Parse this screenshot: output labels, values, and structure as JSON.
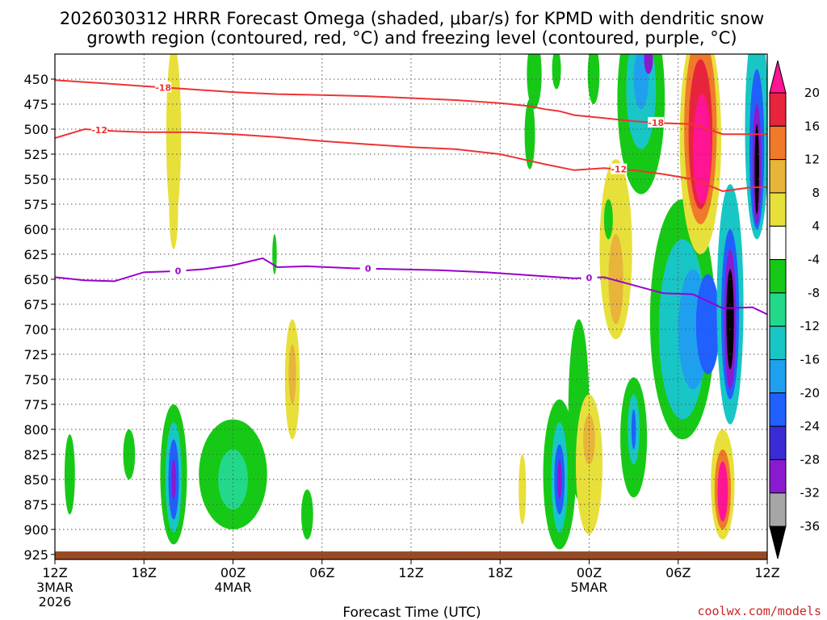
{
  "chart_data": {
    "type": "heatmap",
    "title_line1": "2026030312 HRRR Forecast Omega (shaded, μbar/s) for KPMD with dendritic snow",
    "title_line2": "growth region (contoured, red, °C) and freezing level (contoured, purple, °C)",
    "xlabel": "Forecast Time (UTC)",
    "credit": "coolwx.com/models",
    "x_range_hours": [
      0,
      48
    ],
    "x_ticks": [
      {
        "h": 0,
        "label": "12Z",
        "sub1": "3MAR",
        "sub2": "2026"
      },
      {
        "h": 6,
        "label": "18Z",
        "sub1": "",
        "sub2": ""
      },
      {
        "h": 12,
        "label": "00Z",
        "sub1": "4MAR",
        "sub2": ""
      },
      {
        "h": 18,
        "label": "06Z",
        "sub1": "",
        "sub2": ""
      },
      {
        "h": 24,
        "label": "12Z",
        "sub1": "",
        "sub2": ""
      },
      {
        "h": 30,
        "label": "18Z",
        "sub1": "",
        "sub2": ""
      },
      {
        "h": 36,
        "label": "00Z",
        "sub1": "5MAR",
        "sub2": ""
      },
      {
        "h": 42,
        "label": "06Z",
        "sub1": "",
        "sub2": ""
      },
      {
        "h": 48,
        "label": "12Z",
        "sub1": "",
        "sub2": ""
      }
    ],
    "y_range_mb": [
      425,
      930
    ],
    "y_ticks": [
      450,
      475,
      500,
      525,
      550,
      575,
      600,
      625,
      650,
      675,
      700,
      725,
      750,
      775,
      800,
      825,
      850,
      875,
      900,
      925
    ],
    "colorbar": {
      "labels": [
        "20",
        "16",
        "12",
        "8",
        "4",
        "-4",
        "-8",
        "-12",
        "-16",
        "-20",
        "-24",
        "-28",
        "-32",
        "-36"
      ],
      "colors": [
        "#ff1493",
        "#e8243c",
        "#f07a2a",
        "#e8b43a",
        "#e8e03a",
        "#ffffff",
        "#17c917",
        "#22d98a",
        "#18c6c6",
        "#1fa0ef",
        "#2060ff",
        "#3a2bd6",
        "#8a1ad0",
        "#a6a6a6",
        "#000000"
      ]
    },
    "contours": [
      {
        "name": "dgz-minus18",
        "color": "#ee3333",
        "label": "-18",
        "points": [
          [
            0,
            451
          ],
          [
            3,
            454
          ],
          [
            6,
            457
          ],
          [
            9,
            460
          ],
          [
            12,
            463
          ],
          [
            15,
            465
          ],
          [
            18,
            466
          ],
          [
            21,
            467
          ],
          [
            24,
            469
          ],
          [
            27,
            471
          ],
          [
            30,
            474
          ],
          [
            32,
            477
          ],
          [
            33,
            480
          ],
          [
            34,
            482
          ],
          [
            35,
            486
          ],
          [
            37,
            489
          ],
          [
            39,
            492
          ],
          [
            41,
            494
          ],
          [
            43,
            495
          ],
          [
            45,
            505
          ],
          [
            48,
            505
          ]
        ]
      },
      {
        "name": "dgz-minus12",
        "color": "#ee3333",
        "label": "-12",
        "points": [
          [
            0,
            509
          ],
          [
            2,
            500
          ],
          [
            4,
            502
          ],
          [
            6,
            503
          ],
          [
            9,
            503
          ],
          [
            12,
            505
          ],
          [
            15,
            508
          ],
          [
            18,
            512
          ],
          [
            21,
            515
          ],
          [
            24,
            518
          ],
          [
            27,
            520
          ],
          [
            30,
            525
          ],
          [
            33,
            535
          ],
          [
            35,
            541
          ],
          [
            37,
            539
          ],
          [
            39,
            541
          ],
          [
            41,
            545
          ],
          [
            43,
            550
          ],
          [
            45,
            562
          ],
          [
            47,
            558
          ],
          [
            48,
            558
          ]
        ]
      },
      {
        "name": "freezing-level",
        "color": "#9900cc",
        "label": "0",
        "points": [
          [
            0,
            648
          ],
          [
            2,
            651
          ],
          [
            4,
            652
          ],
          [
            6,
            643
          ],
          [
            8,
            642
          ],
          [
            10,
            640
          ],
          [
            12,
            636
          ],
          [
            14,
            629
          ],
          [
            15,
            638
          ],
          [
            17,
            637
          ],
          [
            20,
            639
          ],
          [
            23,
            640
          ],
          [
            26,
            641
          ],
          [
            29,
            643
          ],
          [
            32,
            646
          ],
          [
            35,
            649
          ],
          [
            37,
            648
          ],
          [
            39,
            656
          ],
          [
            41,
            664
          ],
          [
            43,
            665
          ],
          [
            45,
            679
          ],
          [
            47,
            678
          ],
          [
            48,
            685
          ]
        ]
      }
    ],
    "contour_label_positions": [
      {
        "line": "-18",
        "h": 7.3
      },
      {
        "line": "-18",
        "h": 40.5
      },
      {
        "line": "-12",
        "h": 3.0
      },
      {
        "line": "-12",
        "h": 38.0
      },
      {
        "line": "0",
        "h": 8.3
      },
      {
        "line": "0",
        "h": 21.1
      },
      {
        "line": "0",
        "h": 36.0
      }
    ],
    "omega_cells": [
      {
        "h": 8.0,
        "p": 505,
        "dh": 0.5,
        "dp": 90,
        "v": 4
      },
      {
        "h": 8.0,
        "p": 580,
        "dh": 0.3,
        "dp": 40,
        "v": 4
      },
      {
        "h": 16.0,
        "p": 750,
        "dh": 0.5,
        "dp": 60,
        "v": 4
      },
      {
        "h": 16.0,
        "p": 745,
        "dh": 0.25,
        "dp": 30,
        "v": 8
      },
      {
        "h": 1.0,
        "p": 845,
        "dh": 0.35,
        "dp": 40,
        "v": -4
      },
      {
        "h": 5.0,
        "p": 825,
        "dh": 0.4,
        "dp": 25,
        "v": -4
      },
      {
        "h": 8.0,
        "p": 845,
        "dh": 0.9,
        "dp": 70,
        "v": -4
      },
      {
        "h": 8.0,
        "p": 848,
        "dh": 0.55,
        "dp": 55,
        "v": -12
      },
      {
        "h": 8.0,
        "p": 850,
        "dh": 0.35,
        "dp": 40,
        "v": -20
      },
      {
        "h": 8.0,
        "p": 850,
        "dh": 0.15,
        "dp": 20,
        "v": -28
      },
      {
        "h": 12.0,
        "p": 845,
        "dh": 2.3,
        "dp": 55,
        "v": -4
      },
      {
        "h": 12.0,
        "p": 850,
        "dh": 1.0,
        "dp": 30,
        "v": -8
      },
      {
        "h": 17.0,
        "p": 885,
        "dh": 0.4,
        "dp": 25,
        "v": -4
      },
      {
        "h": 14.8,
        "p": 625,
        "dh": 0.15,
        "dp": 20,
        "v": -4
      },
      {
        "h": 31.5,
        "p": 860,
        "dh": 0.25,
        "dp": 35,
        "v": 4
      },
      {
        "h": 34.0,
        "p": 845,
        "dh": 1.1,
        "dp": 75,
        "v": -4
      },
      {
        "h": 34.0,
        "p": 848,
        "dh": 0.55,
        "dp": 55,
        "v": -12
      },
      {
        "h": 34.0,
        "p": 850,
        "dh": 0.35,
        "dp": 35,
        "v": -20
      },
      {
        "h": 34.0,
        "p": 850,
        "dh": 0.15,
        "dp": 20,
        "v": -28
      },
      {
        "h": 35.3,
        "p": 780,
        "dh": 0.7,
        "dp": 90,
        "v": -4
      },
      {
        "h": 36.0,
        "p": 835,
        "dh": 0.9,
        "dp": 70,
        "v": 4
      },
      {
        "h": 36.0,
        "p": 810,
        "dh": 0.4,
        "dp": 25,
        "v": 8
      },
      {
        "h": 39.0,
        "p": 808,
        "dh": 0.9,
        "dp": 60,
        "v": -4
      },
      {
        "h": 39.0,
        "p": 800,
        "dh": 0.4,
        "dp": 35,
        "v": -12
      },
      {
        "h": 39.0,
        "p": 800,
        "dh": 0.15,
        "dp": 20,
        "v": -20
      },
      {
        "h": 37.8,
        "p": 620,
        "dh": 1.1,
        "dp": 90,
        "v": 4
      },
      {
        "h": 37.8,
        "p": 650,
        "dh": 0.5,
        "dp": 45,
        "v": 8
      },
      {
        "h": 37.3,
        "p": 590,
        "dh": 0.3,
        "dp": 20,
        "v": -4
      },
      {
        "h": 32.0,
        "p": 505,
        "dh": 0.35,
        "dp": 35,
        "v": -4
      },
      {
        "h": 32.3,
        "p": 445,
        "dh": 0.5,
        "dp": 35,
        "v": -4
      },
      {
        "h": 33.8,
        "p": 440,
        "dh": 0.3,
        "dp": 20,
        "v": -4
      },
      {
        "h": 36.3,
        "p": 445,
        "dh": 0.4,
        "dp": 30,
        "v": -4
      },
      {
        "h": 39.5,
        "p": 470,
        "dh": 1.6,
        "dp": 95,
        "v": -4
      },
      {
        "h": 39.5,
        "p": 460,
        "dh": 1.0,
        "dp": 60,
        "v": -12
      },
      {
        "h": 39.5,
        "p": 450,
        "dh": 0.5,
        "dp": 30,
        "v": -16
      },
      {
        "h": 40.0,
        "p": 430,
        "dh": 0.3,
        "dp": 15,
        "v": -28
      },
      {
        "h": 42.3,
        "p": 690,
        "dh": 2.2,
        "dp": 120,
        "v": -4
      },
      {
        "h": 42.3,
        "p": 700,
        "dh": 1.6,
        "dp": 90,
        "v": -12
      },
      {
        "h": 43.0,
        "p": 700,
        "dh": 1.0,
        "dp": 60,
        "v": -16
      },
      {
        "h": 44.0,
        "p": 695,
        "dh": 0.8,
        "dp": 50,
        "v": -20
      },
      {
        "h": 43.5,
        "p": 510,
        "dh": 1.4,
        "dp": 115,
        "v": 4
      },
      {
        "h": 43.5,
        "p": 500,
        "dh": 1.1,
        "dp": 95,
        "v": 12
      },
      {
        "h": 43.5,
        "p": 505,
        "dh": 0.8,
        "dp": 75,
        "v": 16
      },
      {
        "h": 43.6,
        "p": 520,
        "dh": 0.6,
        "dp": 55,
        "v": 20
      },
      {
        "h": 45.5,
        "p": 675,
        "dh": 0.9,
        "dp": 120,
        "v": -12
      },
      {
        "h": 45.5,
        "p": 685,
        "dh": 0.6,
        "dp": 85,
        "v": -20
      },
      {
        "h": 45.5,
        "p": 690,
        "dh": 0.4,
        "dp": 70,
        "v": -28
      },
      {
        "h": 45.5,
        "p": 690,
        "dh": 0.25,
        "dp": 50,
        "v": -36
      },
      {
        "h": 45.0,
        "p": 855,
        "dh": 0.8,
        "dp": 55,
        "v": 4
      },
      {
        "h": 45.0,
        "p": 860,
        "dh": 0.55,
        "dp": 40,
        "v": 12
      },
      {
        "h": 45.0,
        "p": 862,
        "dh": 0.35,
        "dp": 30,
        "v": 20
      },
      {
        "h": 47.3,
        "p": 500,
        "dh": 0.8,
        "dp": 110,
        "v": -12
      },
      {
        "h": 47.3,
        "p": 520,
        "dh": 0.5,
        "dp": 80,
        "v": -20
      },
      {
        "h": 47.3,
        "p": 535,
        "dh": 0.3,
        "dp": 60,
        "v": -28
      },
      {
        "h": 47.3,
        "p": 540,
        "dh": 0.15,
        "dp": 45,
        "v": -36
      }
    ],
    "ground_band_mb": [
      922,
      930
    ]
  }
}
